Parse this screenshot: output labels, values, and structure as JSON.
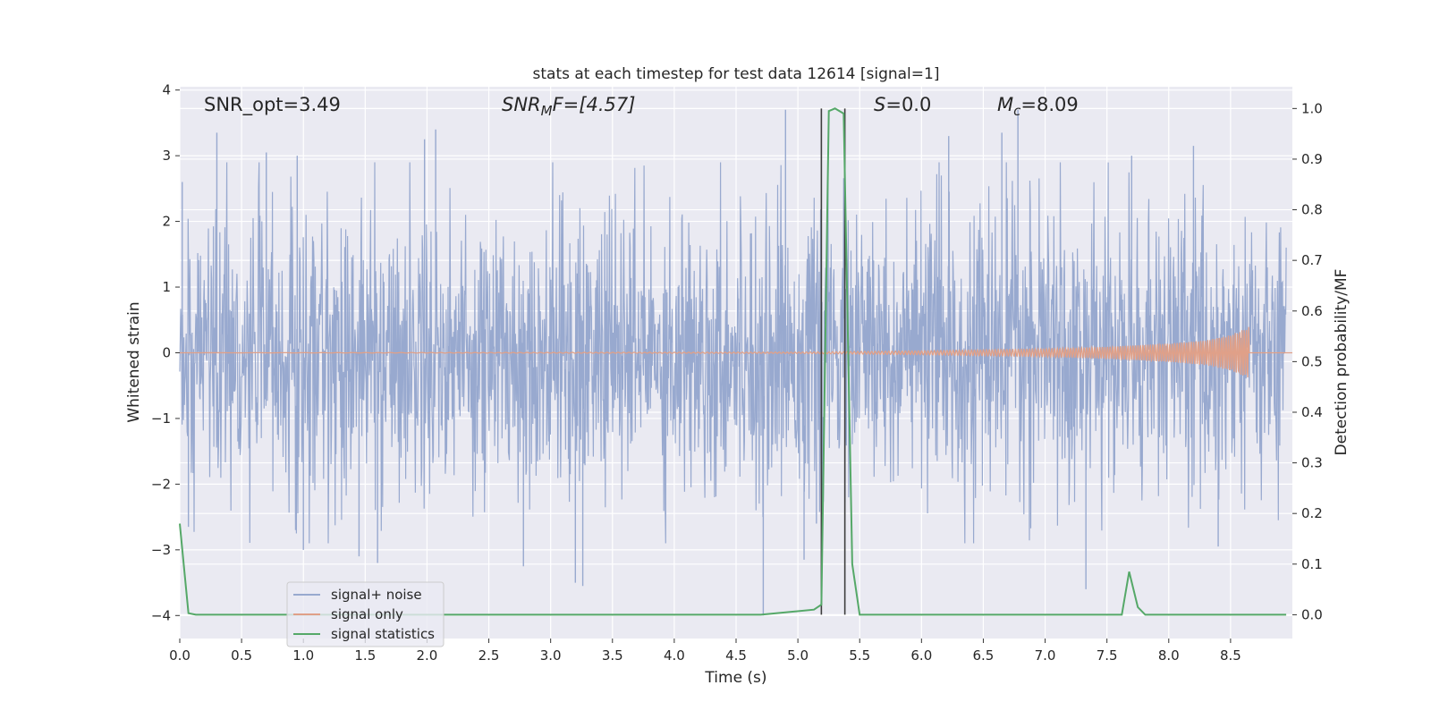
{
  "chart_data": {
    "type": "line",
    "title": "stats at each timestep for test data 12614 [signal=1]",
    "xlabel": "Time (s)",
    "ylabel": "Whitened strain",
    "y2label": "Detection probability/MF",
    "xlim": [
      0,
      9.0
    ],
    "ylim": [
      -4.35,
      4.05
    ],
    "y2lim": [
      -0.047,
      1.043
    ],
    "xticks": [
      0.0,
      0.5,
      1.0,
      1.5,
      2.0,
      2.5,
      3.0,
      3.5,
      4.0,
      4.5,
      5.0,
      5.5,
      6.0,
      6.5,
      7.0,
      7.5,
      8.0,
      8.5
    ],
    "xtick_labels": [
      "0.0",
      "0.5",
      "1.0",
      "1.5",
      "2.0",
      "2.5",
      "3.0",
      "3.5",
      "4.0",
      "4.5",
      "5.0",
      "5.5",
      "6.0",
      "6.5",
      "7.0",
      "7.5",
      "8.0",
      "8.5"
    ],
    "yticks": [
      4,
      3,
      2,
      1,
      0,
      -1,
      -2,
      -3,
      -4
    ],
    "ytick_labels": [
      "4",
      "3",
      "2",
      "1",
      "0",
      "−1",
      "−2",
      "−3",
      "−4"
    ],
    "y2ticks": [
      1.0,
      0.9,
      0.8,
      0.7,
      0.6,
      0.5,
      0.4,
      0.3,
      0.2,
      0.1,
      0.0
    ],
    "y2tick_labels": [
      "1.0",
      "0.9",
      "0.8",
      "0.7",
      "0.6",
      "0.5",
      "0.4",
      "0.3",
      "0.2",
      "0.1",
      "0.0"
    ],
    "grid": true,
    "legend_position": "bottom-left",
    "annotations": {
      "snr_opt": "SNR_opt=3.49",
      "snr_mf_sym": "SNR",
      "snr_mf_sub": "M",
      "snr_mf_rest": "F=[4.57]",
      "s_sym": "S",
      "s_rest": "=0.0",
      "mc_sym": "M",
      "mc_sub": "c",
      "mc_rest": "=8.09"
    },
    "vlines_x": [
      5.19,
      5.38
    ],
    "series": [
      {
        "name": "signal+ noise",
        "color": "#98a9cf",
        "axis": "left",
        "noise_std": 1.0,
        "peak_values": [
          {
            "x": 0.02,
            "y": 2.6
          },
          {
            "x": 0.07,
            "y": -2.65
          },
          {
            "x": 0.3,
            "y": 3.35
          },
          {
            "x": 0.7,
            "y": 3.05
          },
          {
            "x": 0.95,
            "y": 3.0
          },
          {
            "x": 1.0,
            "y": -3.0
          },
          {
            "x": 1.45,
            "y": -3.1
          },
          {
            "x": 1.6,
            "y": -3.2
          },
          {
            "x": 1.98,
            "y": 3.25
          },
          {
            "x": 2.07,
            "y": 3.4
          },
          {
            "x": 2.78,
            "y": -3.25
          },
          {
            "x": 3.2,
            "y": -3.5
          },
          {
            "x": 3.26,
            "y": -3.55
          },
          {
            "x": 4.72,
            "y": -4.0
          },
          {
            "x": 4.9,
            "y": 3.7
          },
          {
            "x": 5.05,
            "y": -3.15
          },
          {
            "x": 5.15,
            "y": -2.6
          },
          {
            "x": 6.22,
            "y": 3.3
          },
          {
            "x": 6.65,
            "y": 3.35
          },
          {
            "x": 6.78,
            "y": 3.7
          },
          {
            "x": 7.33,
            "y": -3.6
          },
          {
            "x": 7.7,
            "y": 3.0
          },
          {
            "x": 8.2,
            "y": 3.15
          },
          {
            "x": 8.4,
            "y": -2.95
          }
        ]
      },
      {
        "name": "signal only",
        "color": "#e0a088",
        "axis": "left",
        "x": [
          0.0,
          5.0,
          6.0,
          7.0,
          7.5,
          8.0,
          8.3,
          8.5,
          8.6,
          8.65
        ],
        "envelope": [
          0.0,
          0.01,
          0.03,
          0.06,
          0.09,
          0.14,
          0.19,
          0.27,
          0.35,
          0.4
        ],
        "cycles": 22
      },
      {
        "name": "signal statistics",
        "color": "#55a868",
        "axis": "right",
        "x": [
          0.0,
          0.07,
          0.13,
          4.7,
          5.13,
          5.19,
          5.25,
          5.3,
          5.37,
          5.44,
          5.5,
          7.62,
          7.68,
          7.75,
          7.81,
          8.95
        ],
        "y": [
          0.18,
          0.003,
          0.0,
          0.0,
          0.01,
          0.02,
          0.995,
          1.0,
          0.99,
          0.1,
          0.0,
          0.0,
          0.085,
          0.015,
          0.0,
          0.0
        ]
      }
    ]
  }
}
